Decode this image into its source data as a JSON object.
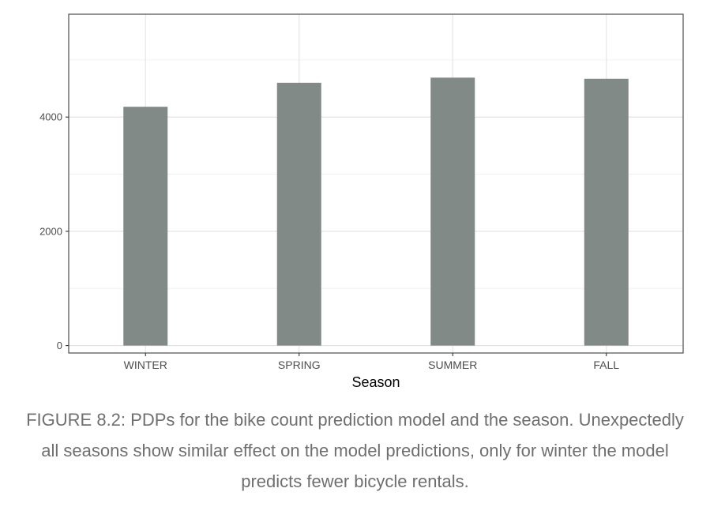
{
  "chart_data": {
    "type": "bar",
    "categories": [
      "WINTER",
      "SPRING",
      "SUMMER",
      "FALL"
    ],
    "values": [
      4180,
      4600,
      4690,
      4670
    ],
    "xlabel": "Season",
    "ylabel": "",
    "ylim": [
      -130,
      5800
    ],
    "yticks": [
      0,
      2000,
      4000
    ],
    "grid": true,
    "bar_color": "#828a87"
  },
  "caption": "FIGURE 8.2: PDPs for the bike count prediction model and the season. Unexpectedly all seasons show similar effect on the model predictions, only for winter the model predicts fewer bicycle rentals."
}
